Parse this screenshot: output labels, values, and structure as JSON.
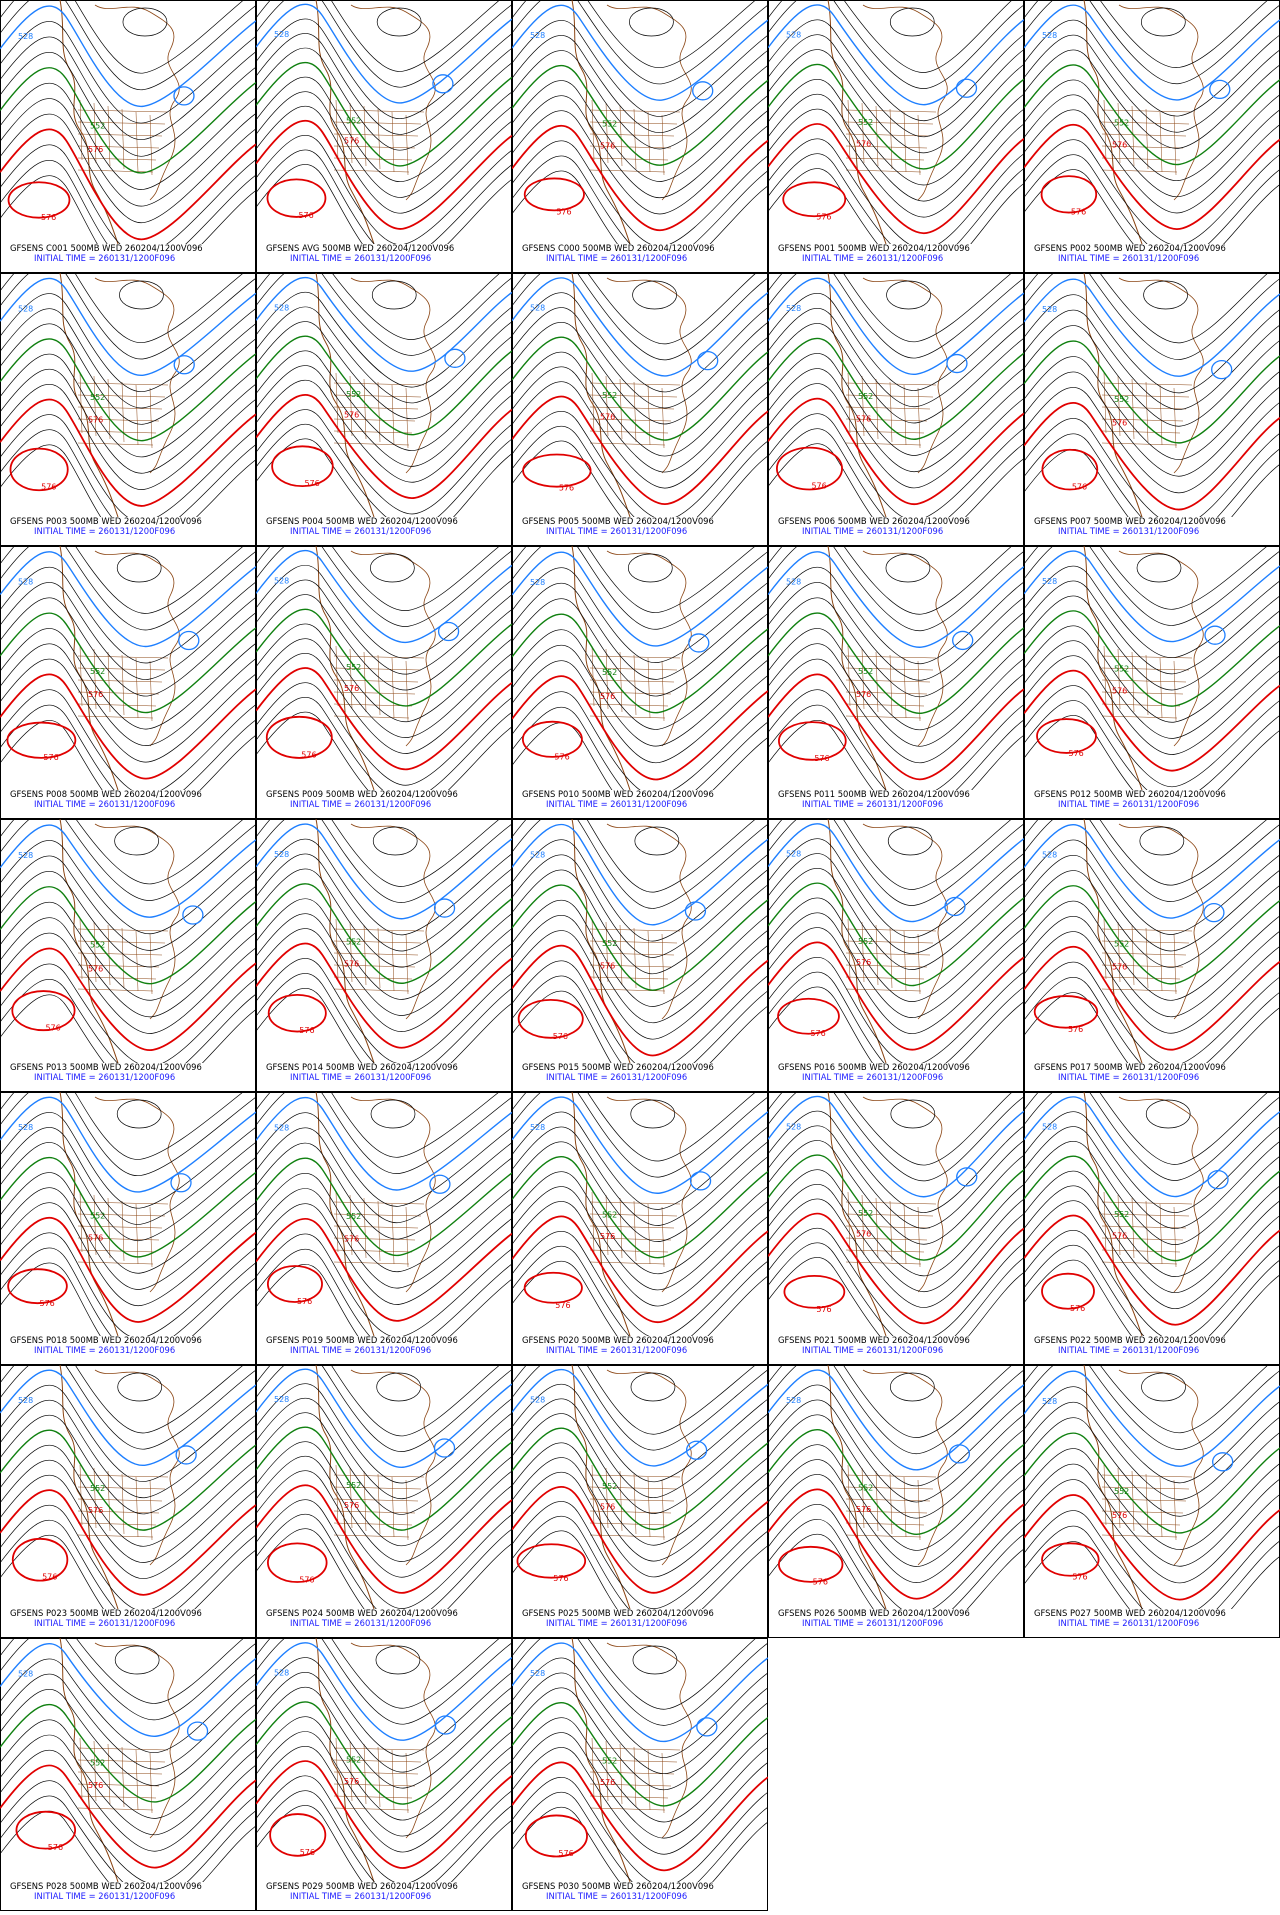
{
  "panels": [
    {
      "line1": "GFSENS C001 500MB WED 260204/1200V096",
      "line2": "INITIAL TIME = 260131/1200F096",
      "contour_labels": [
        "528",
        "552",
        "576",
        "576"
      ]
    },
    {
      "line1": "GFSENS AVG 500MB WED 260204/1200V096",
      "line2": "INITIAL TIME = 260131/1200F096",
      "contour_labels": [
        "528",
        "552",
        "576",
        "576"
      ]
    },
    {
      "line1": "GFSENS C000 500MB WED 260204/1200V096",
      "line2": "INITIAL TIME = 260131/1200F096",
      "contour_labels": [
        "528",
        "552",
        "576",
        "576"
      ]
    },
    {
      "line1": "GFSENS P001 500MB WED 260204/1200V096",
      "line2": "INITIAL TIME = 260131/1200F096",
      "contour_labels": [
        "528",
        "552",
        "576",
        "576"
      ]
    },
    {
      "line1": "GFSENS P002 500MB WED 260204/1200V096",
      "line2": "INITIAL TIME = 260131/1200F096",
      "contour_labels": [
        "528",
        "552",
        "576",
        "576"
      ]
    },
    {
      "line1": "GFSENS P003 500MB WED 260204/1200V096",
      "line2": "INITIAL TIME = 260131/1200F096",
      "contour_labels": [
        "528",
        "552",
        "576",
        "576"
      ]
    },
    {
      "line1": "GFSENS P004 500MB WED 260204/1200V096",
      "line2": "INITIAL TIME = 260131/1200F096",
      "contour_labels": [
        "528",
        "552",
        "576",
        "576"
      ]
    },
    {
      "line1": "GFSENS P005 500MB WED 260204/1200V096",
      "line2": "INITIAL TIME = 260131/1200F096",
      "contour_labels": [
        "528",
        "552",
        "576",
        "576"
      ]
    },
    {
      "line1": "GFSENS P006 500MB WED 260204/1200V096",
      "line2": "INITIAL TIME = 260131/1200F096",
      "contour_labels": [
        "528",
        "552",
        "576",
        "576"
      ]
    },
    {
      "line1": "GFSENS P007 500MB WED 260204/1200V096",
      "line2": "INITIAL TIME = 260131/1200F096",
      "contour_labels": [
        "528",
        "552",
        "576",
        "576"
      ]
    },
    {
      "line1": "GFSENS P008 500MB WED 260204/1200V096",
      "line2": "INITIAL TIME = 260131/1200F096",
      "contour_labels": [
        "528",
        "552",
        "576",
        "576"
      ]
    },
    {
      "line1": "GFSENS P009 500MB WED 260204/1200V096",
      "line2": "INITIAL TIME = 260131/1200F096",
      "contour_labels": [
        "528",
        "552",
        "576",
        "576"
      ]
    },
    {
      "line1": "GFSENS P010 500MB WED 260204/1200V096",
      "line2": "INITIAL TIME = 260131/1200F096",
      "contour_labels": [
        "528",
        "552",
        "576",
        "576"
      ]
    },
    {
      "line1": "GFSENS P011 500MB WED 260204/1200V096",
      "line2": "INITIAL TIME = 260131/1200F096",
      "contour_labels": [
        "528",
        "552",
        "576",
        "576"
      ]
    },
    {
      "line1": "GFSENS P012 500MB WED 260204/1200V096",
      "line2": "INITIAL TIME = 260131/1200F096",
      "contour_labels": [
        "528",
        "552",
        "576",
        "576"
      ]
    },
    {
      "line1": "GFSENS P013 500MB WED 260204/1200V096",
      "line2": "INITIAL TIME = 260131/1200F096",
      "contour_labels": [
        "528",
        "552",
        "576",
        "576"
      ]
    },
    {
      "line1": "GFSENS P014 500MB WED 260204/1200V096",
      "line2": "INITIAL TIME = 260131/1200F096",
      "contour_labels": [
        "528",
        "552",
        "576",
        "576"
      ]
    },
    {
      "line1": "GFSENS P015 500MB WED 260204/1200V096",
      "line2": "INITIAL TIME = 260131/1200F096",
      "contour_labels": [
        "528",
        "552",
        "576",
        "576"
      ]
    },
    {
      "line1": "GFSENS P016 500MB WED 260204/1200V096",
      "line2": "INITIAL TIME = 260131/1200F096",
      "contour_labels": [
        "528",
        "552",
        "576",
        "576"
      ]
    },
    {
      "line1": "GFSENS P017 500MB WED 260204/1200V096",
      "line2": "INITIAL TIME = 260131/1200F096",
      "contour_labels": [
        "528",
        "552",
        "576",
        "576"
      ]
    },
    {
      "line1": "GFSENS P018 500MB WED 260204/1200V096",
      "line2": "INITIAL TIME = 260131/1200F096",
      "contour_labels": [
        "528",
        "552",
        "576",
        "576"
      ]
    },
    {
      "line1": "GFSENS P019 500MB WED 260204/1200V096",
      "line2": "INITIAL TIME = 260131/1200F096",
      "contour_labels": [
        "528",
        "552",
        "576",
        "576"
      ]
    },
    {
      "line1": "GFSENS P020 500MB WED 260204/1200V096",
      "line2": "INITIAL TIME = 260131/1200F096",
      "contour_labels": [
        "528",
        "552",
        "576",
        "576"
      ]
    },
    {
      "line1": "GFSENS P021 500MB WED 260204/1200V096",
      "line2": "INITIAL TIME = 260131/1200F096",
      "contour_labels": [
        "528",
        "552",
        "576",
        "576"
      ]
    },
    {
      "line1": "GFSENS P022 500MB WED 260204/1200V096",
      "line2": "INITIAL TIME = 260131/1200F096",
      "contour_labels": [
        "528",
        "552",
        "576",
        "576"
      ]
    },
    {
      "line1": "GFSENS P023 500MB WED 260204/1200V096",
      "line2": "INITIAL TIME = 260131/1200F096",
      "contour_labels": [
        "528",
        "552",
        "576",
        "576"
      ]
    },
    {
      "line1": "GFSENS P024 500MB WED 260204/1200V096",
      "line2": "INITIAL TIME = 260131/1200F096",
      "contour_labels": [
        "528",
        "552",
        "576",
        "576"
      ]
    },
    {
      "line1": "GFSENS P025 500MB WED 260204/1200V096",
      "line2": "INITIAL TIME = 260131/1200F096",
      "contour_labels": [
        "528",
        "552",
        "576",
        "576"
      ]
    },
    {
      "line1": "GFSENS P026 500MB WED 260204/1200V096",
      "line2": "INITIAL TIME = 260131/1200F096",
      "contour_labels": [
        "528",
        "552",
        "576",
        "576"
      ]
    },
    {
      "line1": "GFSENS P027 500MB WED 260204/1200V096",
      "line2": "INITIAL TIME = 260131/1200F096",
      "contour_labels": [
        "528",
        "552",
        "576",
        "576"
      ]
    },
    {
      "line1": "GFSENS P028 500MB WED 260204/1200V096",
      "line2": "INITIAL TIME = 260131/1200F096",
      "contour_labels": [
        "528",
        "552",
        "576",
        "576"
      ]
    },
    {
      "line1": "GFSENS P029 500MB WED 260204/1200V096",
      "line2": "INITIAL TIME = 260131/1200F096",
      "contour_labels": [
        "528",
        "552",
        "576",
        "576"
      ]
    },
    {
      "line1": "GFSENS P030 500MB WED 260204/1200V096",
      "line2": "INITIAL TIME = 260131/1200F096",
      "contour_labels": [
        "528",
        "552",
        "576",
        "576"
      ]
    }
  ]
}
